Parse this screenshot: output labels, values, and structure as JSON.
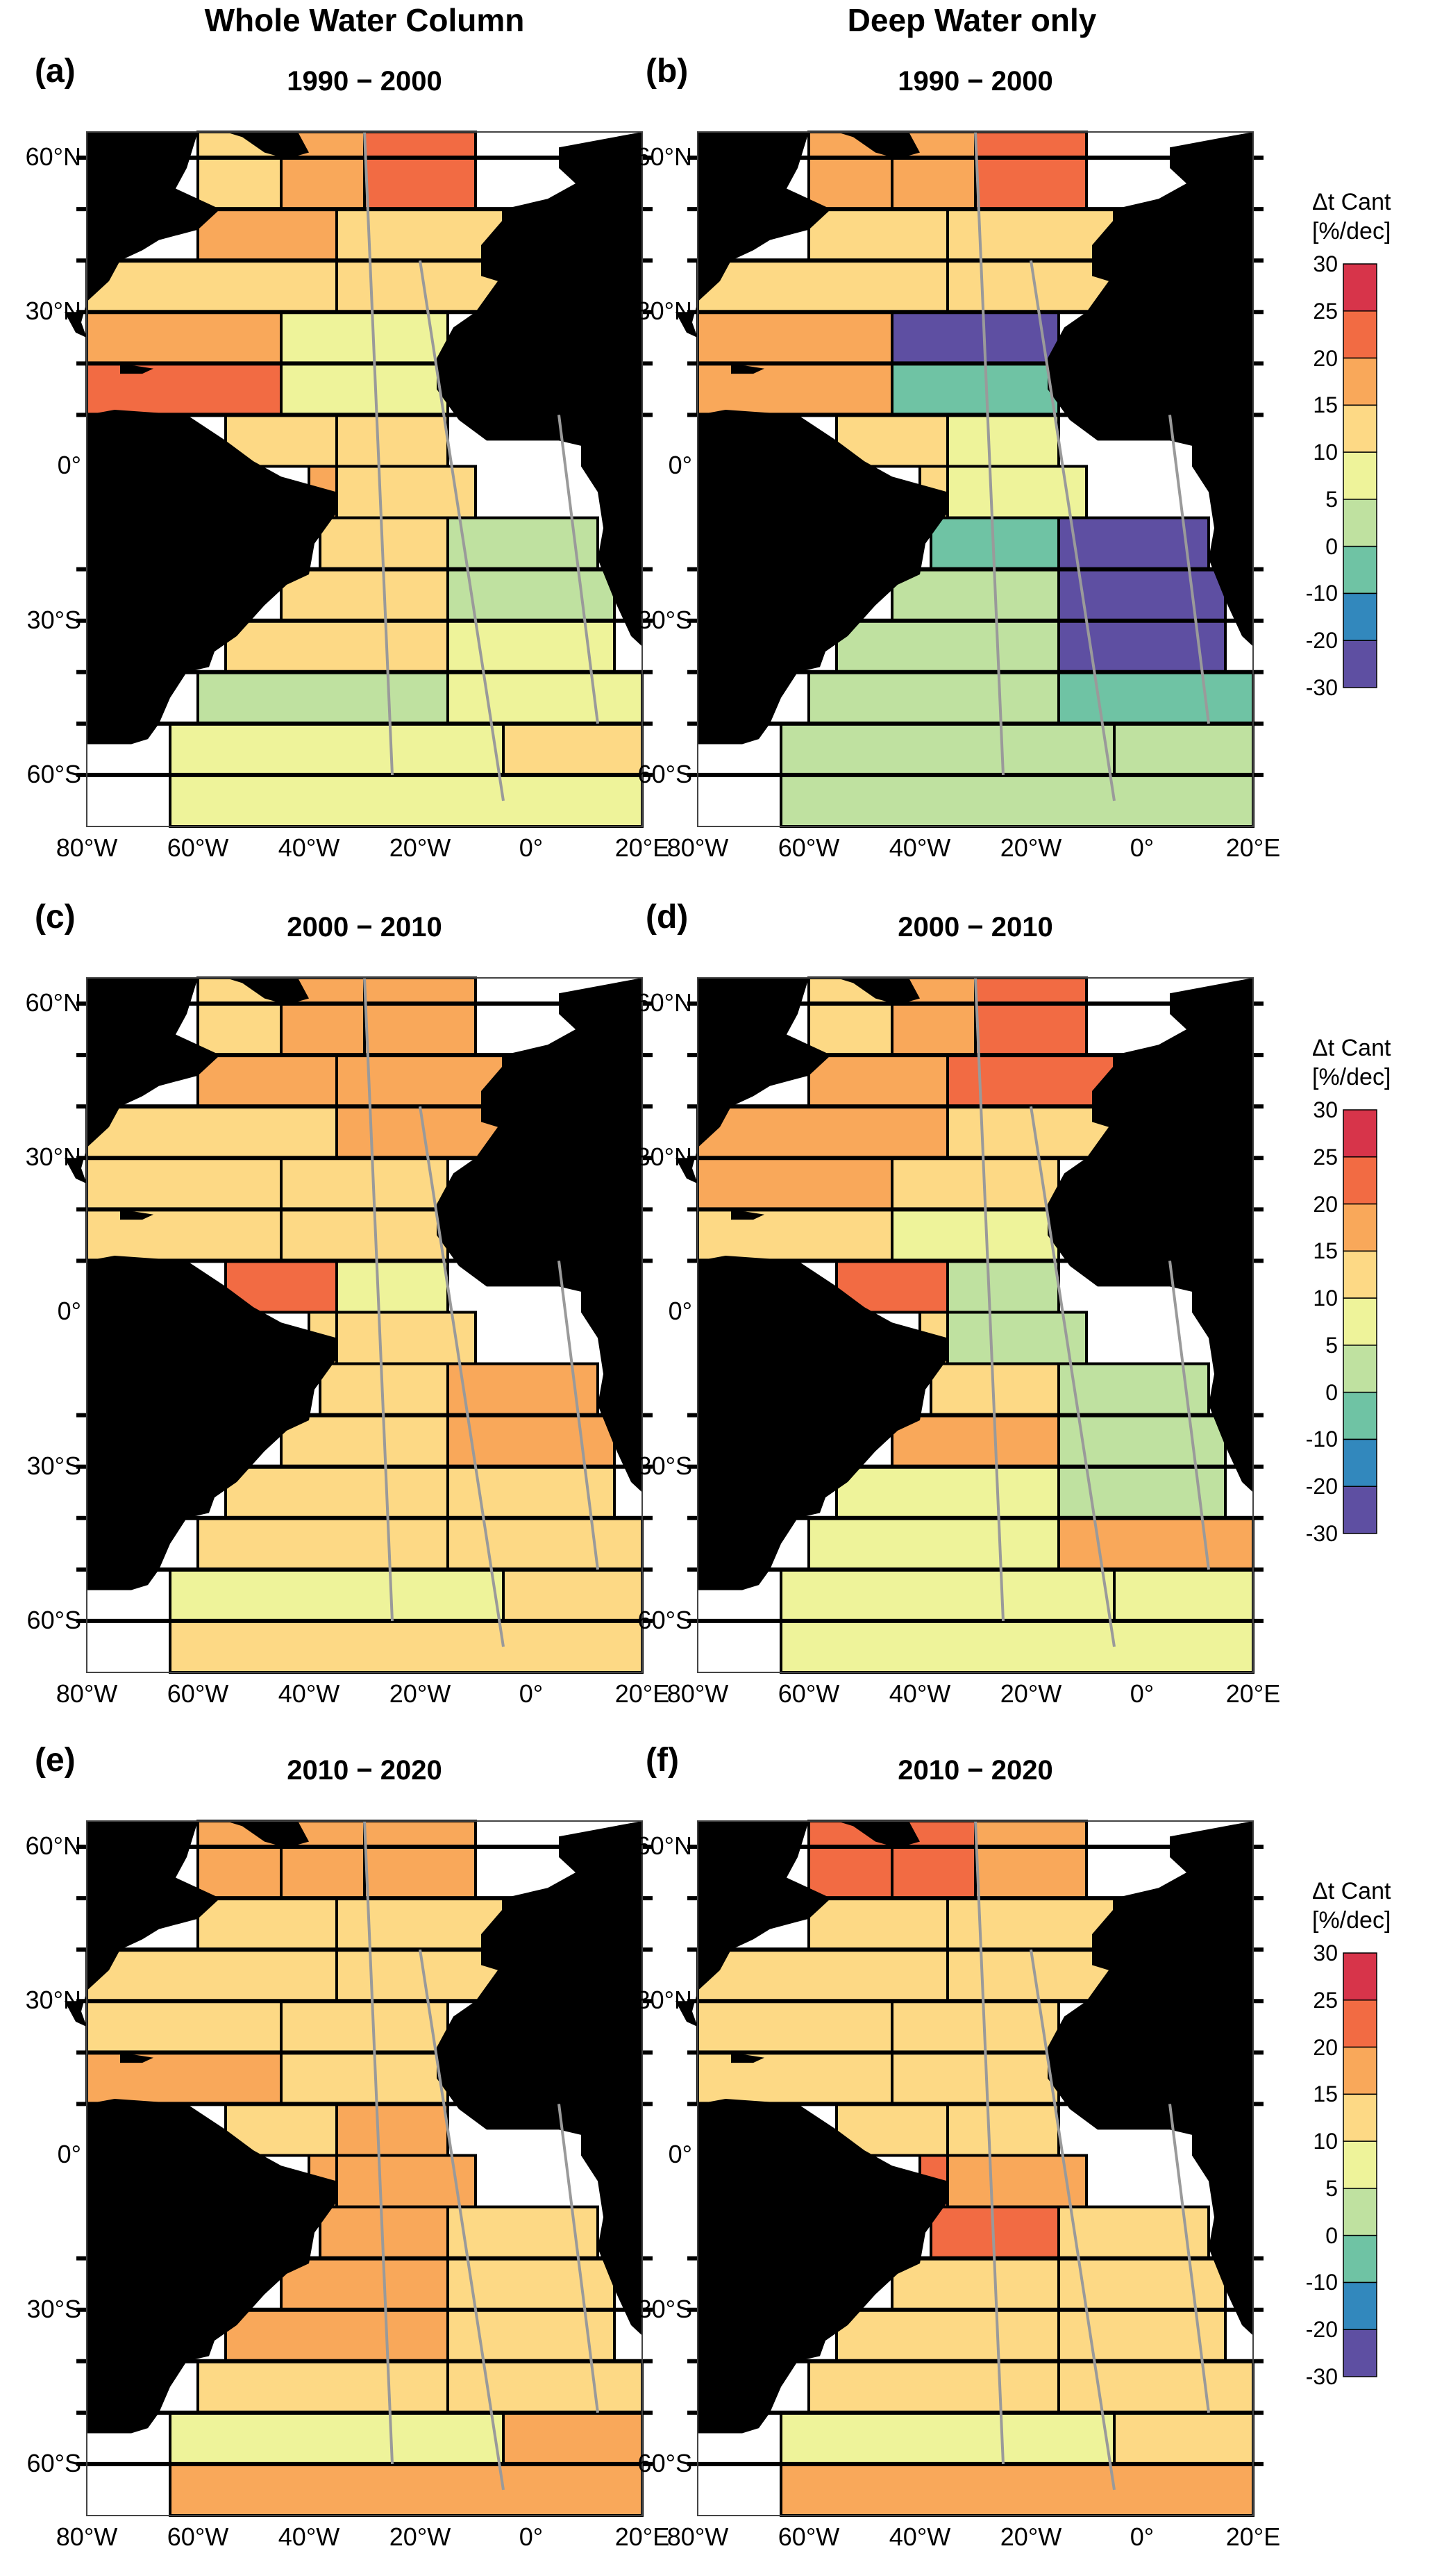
{
  "column_titles": [
    "Whole Water Column",
    "Deep Water only"
  ],
  "panels": [
    {
      "label": "(a)",
      "period": "1990 − 2000"
    },
    {
      "label": "(b)",
      "period": "1990 − 2000"
    },
    {
      "label": "(c)",
      "period": "2000 − 2010"
    },
    {
      "label": "(d)",
      "period": "2000 − 2010"
    },
    {
      "label": "(e)",
      "period": "2010 − 2020"
    },
    {
      "label": "(f)",
      "period": "2010 − 2020"
    }
  ],
  "lat_labels": [
    "60°N",
    "30°N",
    "0°",
    "30°S",
    "60°S"
  ],
  "lon_labels": [
    "80°W",
    "60°W",
    "40°W",
    "20°W",
    "0°",
    "20°E"
  ],
  "colorbar": {
    "title_line1": "Δt Cant",
    "title_line2": "[%/dec]",
    "ticks": [
      "30",
      "25",
      "20",
      "15",
      "10",
      "5",
      "0",
      "-10",
      "-20",
      "-30"
    ],
    "colors": [
      "#d7344a",
      "#f26b43",
      "#f9a85a",
      "#fdd985",
      "#eef39a",
      "#bfe1a0",
      "#6fc3a4",
      "#3288bd",
      "#5e4fa2"
    ]
  },
  "map_data": {
    "rows": [
      {
        "lat": "60°N-50°N",
        "a": [
          15,
          20,
          25
        ],
        "b": [
          20,
          20,
          25
        ],
        "c": [
          15,
          20,
          20
        ],
        "d": [
          15,
          20,
          25
        ],
        "e": [
          20,
          20,
          20
        ],
        "f": [
          25,
          25,
          20
        ]
      },
      {
        "lat": "50°N-40°N",
        "a": [
          20,
          15
        ],
        "b": [
          15,
          15
        ],
        "c": [
          20,
          20
        ],
        "d": [
          20,
          25
        ],
        "e": [
          15,
          15
        ],
        "f": [
          15,
          15
        ]
      },
      {
        "lat": "40°N-30°N",
        "a": [
          15,
          15
        ],
        "b": [
          15,
          15
        ],
        "c": [
          15,
          20
        ],
        "d": [
          20,
          15
        ],
        "e": [
          15,
          15
        ],
        "f": [
          15,
          15
        ]
      },
      {
        "lat": "30°N-20°N",
        "a": [
          20,
          10
        ],
        "b": [
          20,
          -20
        ],
        "c": [
          15,
          15
        ],
        "d": [
          20,
          15
        ],
        "e": [
          15,
          15
        ],
        "f": [
          15,
          15
        ]
      },
      {
        "lat": "20°N-10°N",
        "a": [
          25,
          10
        ],
        "b": [
          20,
          0
        ],
        "c": [
          15,
          15
        ],
        "d": [
          15,
          10
        ],
        "e": [
          20,
          15
        ],
        "f": [
          15,
          15
        ]
      },
      {
        "lat": "10°N-0°",
        "a": [
          15,
          15
        ],
        "b": [
          15,
          10
        ],
        "c": [
          25,
          10
        ],
        "d": [
          25,
          5
        ],
        "e": [
          15,
          20
        ],
        "f": [
          15,
          15
        ]
      },
      {
        "lat": "0°-10°S",
        "a": [
          20,
          15
        ],
        "b": [
          15,
          10
        ],
        "c": [
          15,
          15
        ],
        "d": [
          15,
          5
        ],
        "e": [
          20,
          20
        ],
        "f": [
          25,
          20
        ]
      },
      {
        "lat": "10°S-20°S",
        "a": [
          15,
          5
        ],
        "b": [
          0,
          -20
        ],
        "c": [
          15,
          20
        ],
        "d": [
          15,
          5
        ],
        "e": [
          20,
          15
        ],
        "f": [
          25,
          15
        ]
      },
      {
        "lat": "20°S-30°S",
        "a": [
          15,
          5
        ],
        "b": [
          5,
          -30
        ],
        "c": [
          15,
          20
        ],
        "d": [
          20,
          5
        ],
        "e": [
          20,
          15
        ],
        "f": [
          15,
          15
        ]
      },
      {
        "lat": "30°S-40°S",
        "a": [
          15,
          10
        ],
        "b": [
          5,
          -30
        ],
        "c": [
          15,
          15
        ],
        "d": [
          10,
          5
        ],
        "e": [
          20,
          15
        ],
        "f": [
          15,
          15
        ]
      },
      {
        "lat": "40°S-50°S",
        "a": [
          5,
          10
        ],
        "b": [
          5,
          0
        ],
        "c": [
          15,
          15
        ],
        "d": [
          10,
          20
        ],
        "e": [
          15,
          15
        ],
        "f": [
          15,
          15
        ]
      },
      {
        "lat": "50°S-60°S",
        "a": [
          10,
          15
        ],
        "b": [
          5,
          5
        ],
        "c": [
          10,
          15
        ],
        "d": [
          10,
          10
        ],
        "e": [
          10,
          20
        ],
        "f": [
          10,
          15
        ]
      },
      {
        "lat": "60°S-70°S",
        "a": [
          10
        ],
        "b": [
          5
        ],
        "c": [
          15
        ],
        "d": [
          10
        ],
        "e": [
          20
        ],
        "f": [
          20
        ]
      }
    ]
  }
}
